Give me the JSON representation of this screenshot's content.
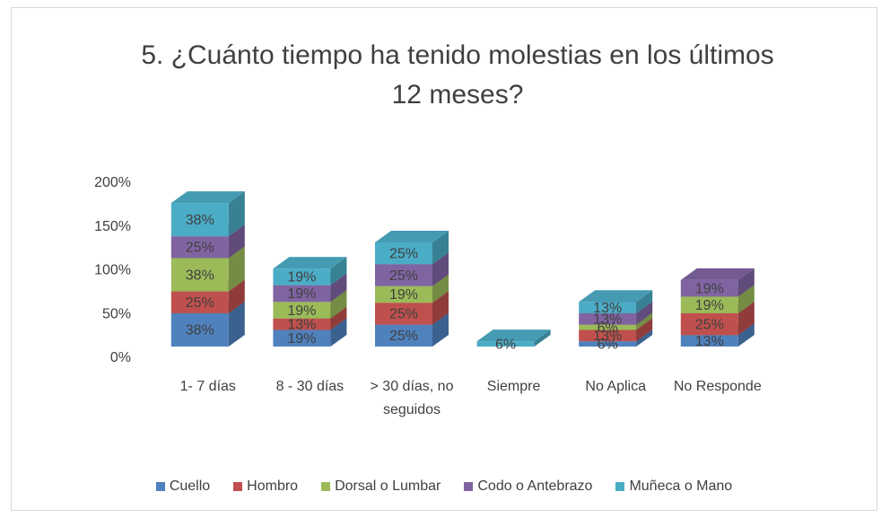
{
  "chart_data": {
    "type": "bar3d_stacked",
    "title": "5. ¿Cuánto tiempo ha tenido molestias en los últimos 12 meses?",
    "categories": [
      "1- 7 días",
      "8 - 30 días",
      "> 30 días, no seguidos",
      "Siempre",
      "No Aplica",
      "No Responde"
    ],
    "series": [
      {
        "name": "Cuello",
        "color": "#4f81bd",
        "values": [
          38,
          19,
          25,
          null,
          6,
          13
        ],
        "value_labels": [
          "38%",
          "19%",
          "25%",
          null,
          "6%",
          "13%"
        ]
      },
      {
        "name": "Hombro",
        "color": "#c0504d",
        "values": [
          25,
          13,
          25,
          null,
          13,
          25
        ],
        "value_labels": [
          "25%",
          "13%",
          "25%",
          null,
          "13%",
          "25%"
        ]
      },
      {
        "name": "Dorsal o Lumbar",
        "color": "#9bbb59",
        "values": [
          38,
          19,
          19,
          null,
          6,
          19
        ],
        "value_labels": [
          "38%",
          "19%",
          "19%",
          null,
          "6%",
          "19%"
        ]
      },
      {
        "name": "Codo o Antebrazo",
        "color": "#8064a2",
        "values": [
          25,
          19,
          25,
          null,
          13,
          19
        ],
        "value_labels": [
          "25%",
          "19%",
          "25%",
          null,
          "13%",
          "19%"
        ]
      },
      {
        "name": "Muñeca o Mano",
        "color": "#4bacc6",
        "values": [
          38,
          19,
          25,
          6,
          13,
          null
        ],
        "value_labels": [
          "38%",
          "19%",
          "25%",
          "6%",
          "13%",
          null
        ]
      }
    ],
    "ylim": [
      0,
      200
    ],
    "yticks": [
      {
        "value": 0,
        "label": "0%"
      },
      {
        "value": 50,
        "label": "50%"
      },
      {
        "value": 100,
        "label": "100%"
      },
      {
        "value": 150,
        "label": "150%"
      },
      {
        "value": 200,
        "label": "200%"
      }
    ],
    "legend": "bottom"
  }
}
